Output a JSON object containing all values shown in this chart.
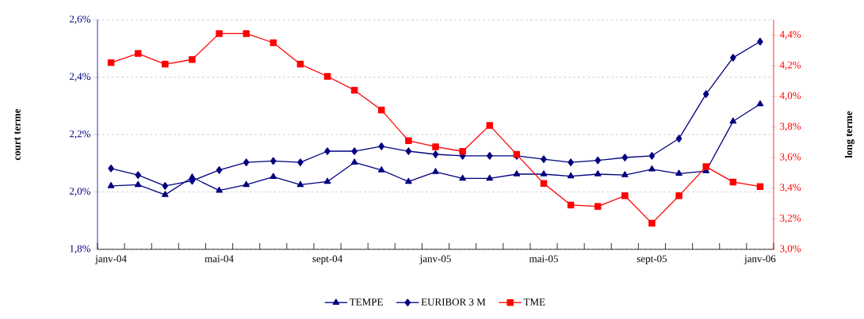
{
  "chart_data": {
    "type": "line",
    "ylabel": "court terme",
    "y2label": "long terme",
    "categories": [
      "janv-04",
      null,
      null,
      null,
      "mai-04",
      null,
      null,
      null,
      "sept-04",
      null,
      null,
      null,
      "janv-05",
      null,
      null,
      null,
      "mai-05",
      null,
      null,
      null,
      "sept-05",
      null,
      null,
      null,
      "janv-06"
    ],
    "series": [
      {
        "name": "TEMPE",
        "color": "#000080",
        "marker": "triangle",
        "values": [
          2.021,
          2.025,
          1.99,
          2.051,
          2.005,
          2.025,
          2.053,
          2.025,
          2.036,
          2.103,
          2.076,
          2.036,
          2.07,
          2.047,
          2.047,
          2.062,
          2.062,
          2.055,
          2.062,
          2.059,
          2.079,
          2.064,
          2.073,
          2.246,
          2.306
        ]
      },
      {
        "name": "EURIBOR 3 M",
        "color": "#000080",
        "marker": "diamond",
        "values": [
          2.082,
          2.059,
          2.021,
          2.039,
          2.076,
          2.103,
          2.108,
          2.103,
          2.142,
          2.142,
          2.159,
          2.142,
          2.131,
          2.126,
          2.126,
          2.126,
          2.114,
          2.103,
          2.11,
          2.12,
          2.126,
          2.186,
          2.341,
          2.468,
          2.524
        ]
      },
      {
        "name": "TME",
        "color": "#ff0000",
        "marker": "square",
        "axis": "y2",
        "values": [
          4.22,
          4.28,
          4.21,
          4.24,
          4.41,
          4.41,
          4.35,
          4.21,
          4.13,
          4.04,
          3.91,
          3.71,
          3.67,
          3.64,
          3.81,
          3.62,
          3.43,
          3.29,
          3.28,
          3.35,
          3.17,
          3.35,
          3.54,
          3.44,
          3.41
        ]
      }
    ],
    "ylim": [
      1.8,
      2.6
    ],
    "yticks": [
      {
        "value": 1.8,
        "label": "1,8%"
      },
      {
        "value": 2.0,
        "label": "2,0%"
      },
      {
        "value": 2.2,
        "label": "2,2%"
      },
      {
        "value": 2.4,
        "label": "2,4%"
      },
      {
        "value": 2.6,
        "label": "2,6%"
      }
    ],
    "y2lim": [
      3.0,
      4.5
    ],
    "y2ticks": [
      {
        "value": 3.0,
        "label": "3,0%"
      },
      {
        "value": 3.2,
        "label": "3,2%"
      },
      {
        "value": 3.4,
        "label": "3,4%"
      },
      {
        "value": 3.6,
        "label": "3,6%"
      },
      {
        "value": 3.8,
        "label": "3,8%"
      },
      {
        "value": 4.0,
        "label": "4,0%"
      },
      {
        "value": 4.2,
        "label": "4,2%"
      },
      {
        "value": 4.4,
        "label": "4,4%"
      }
    ],
    "grid": "y",
    "legend": "bottom",
    "line_style": "solid"
  }
}
